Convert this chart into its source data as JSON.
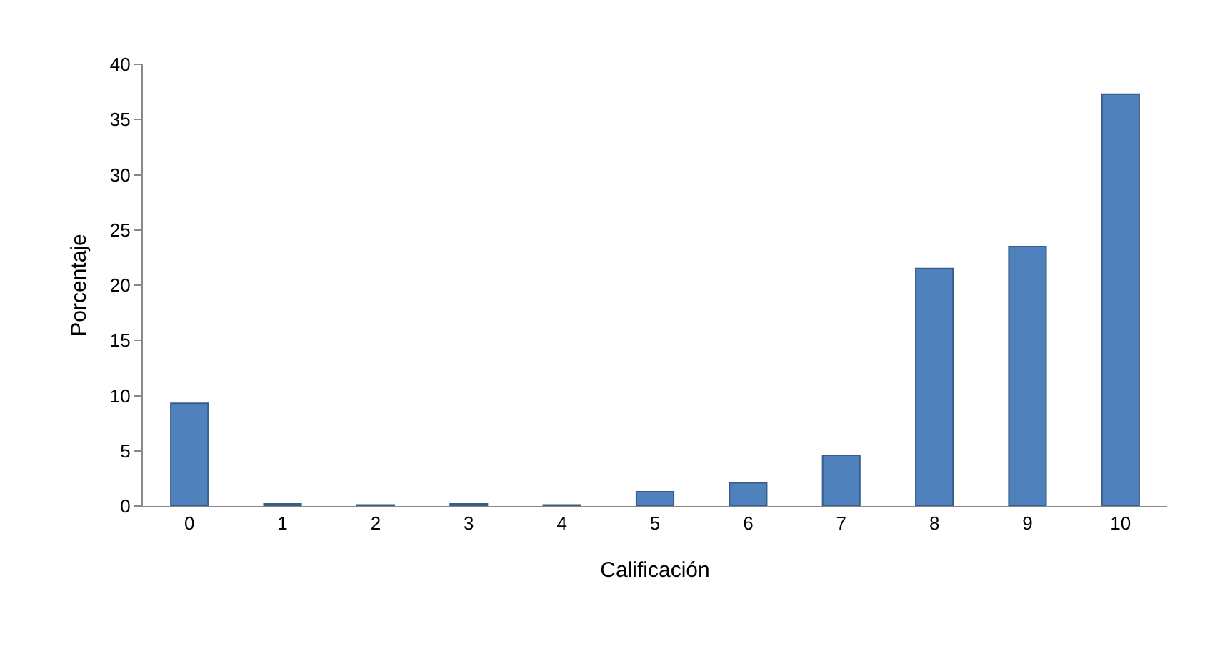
{
  "chart_data": {
    "type": "bar",
    "xlabel": "Calificación",
    "ylabel": "Porcentaje",
    "categories": [
      "0",
      "1",
      "2",
      "3",
      "4",
      "5",
      "6",
      "7",
      "8",
      "9",
      "10"
    ],
    "values": [
      9.3,
      0.2,
      0.1,
      0.2,
      0.1,
      1.3,
      2.1,
      4.6,
      21.5,
      23.5,
      37.3
    ],
    "color": "#4f81bd",
    "ylim": [
      0,
      40
    ],
    "yticks": [
      0,
      5,
      10,
      15,
      20,
      25,
      30,
      35,
      40
    ],
    "grid": false
  }
}
